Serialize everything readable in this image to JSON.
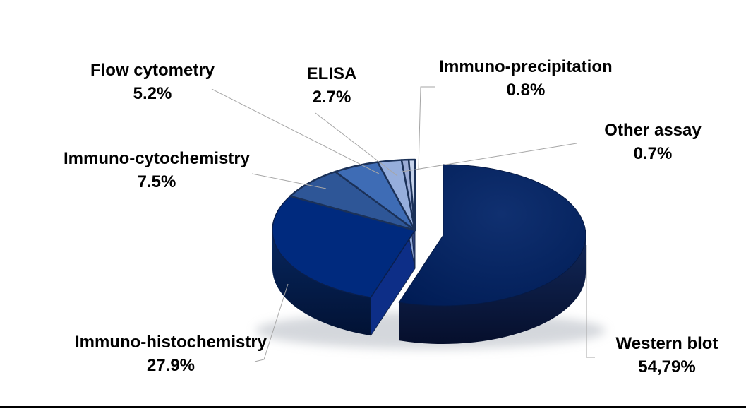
{
  "chart_data": {
    "type": "pie",
    "style": "3d-exploded",
    "unit": "%",
    "start_angle_deg": -90,
    "clockwise": true,
    "legend_position": "none",
    "leader_line_color": "#A6A6A6",
    "edge_color": "#1B3158",
    "slices": [
      {
        "id": "western-blot",
        "label": "Western blot",
        "display": "54,79%",
        "value": 54.79,
        "color": "#00205E",
        "side": "#0A1838"
      },
      {
        "id": "immuno-histochemistry",
        "label": "Immuno-histochemistry",
        "display": "27.9%",
        "value": 27.9,
        "color": "#002A7E",
        "side": "#021B4F",
        "wall": "#0D2E87"
      },
      {
        "id": "immuno-cytochemistry",
        "label": "Immuno-cytochemistry",
        "display": "7.5%",
        "value": 7.5,
        "color": "#2E5697"
      },
      {
        "id": "flow-cytometry",
        "label": "Flow cytometry",
        "display": "5.2%",
        "value": 5.2,
        "color": "#3E6CB5"
      },
      {
        "id": "elisa",
        "label": "ELISA",
        "display": "2.7%",
        "value": 2.7,
        "color": "#96AEDC",
        "wall": "#8FA5D4"
      },
      {
        "id": "immuno-precipitation",
        "label": "Immuno-precipitation",
        "display": "0.8%",
        "value": 0.8,
        "color": "#9AABD6",
        "wall": "#31457E"
      },
      {
        "id": "other-assay",
        "label": "Other assay",
        "display": "0.7%",
        "value": 0.7,
        "color": "#C6D3EB",
        "wall": "#C2CFE9"
      }
    ]
  }
}
